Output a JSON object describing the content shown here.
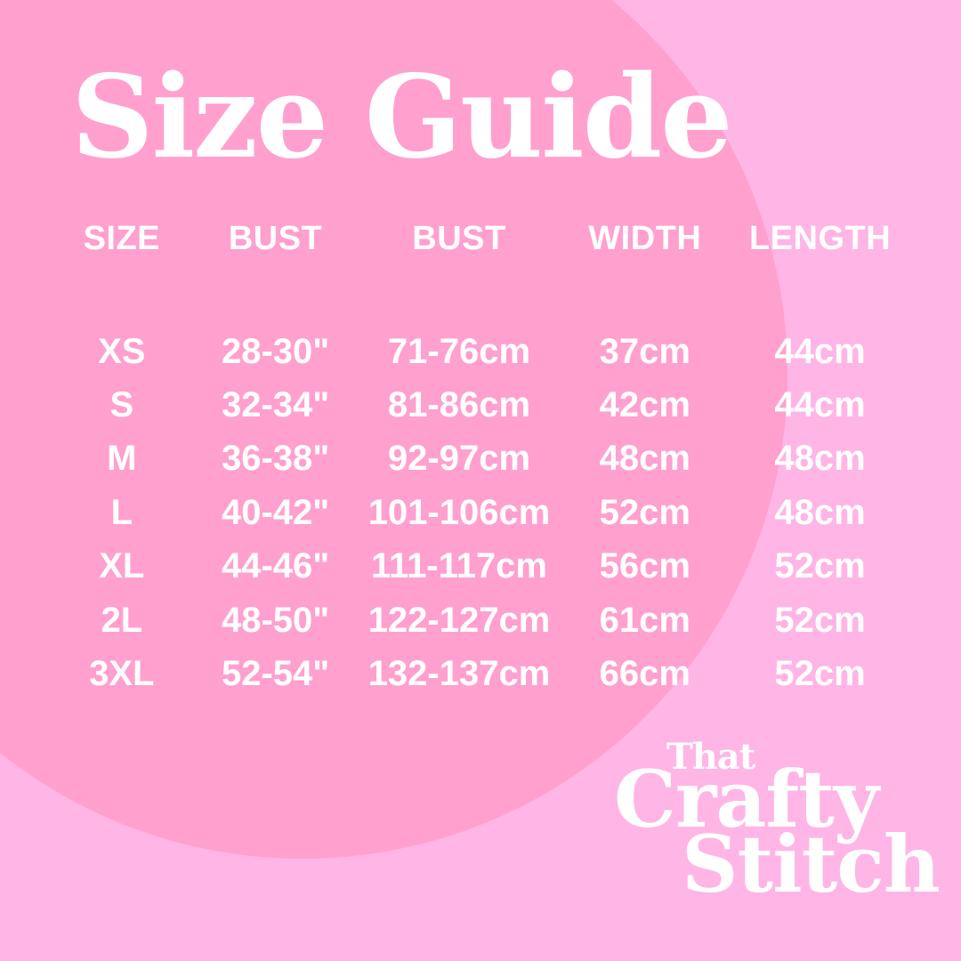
{
  "title": "Size Guide",
  "table": {
    "headers": [
      "SIZE",
      "BUST",
      "BUST",
      "WIDTH",
      "LENGTH"
    ],
    "rows": [
      [
        "XS",
        "28-30\"",
        "71-76cm",
        "37cm",
        "44cm"
      ],
      [
        "S",
        "32-34\"",
        "81-86cm",
        "42cm",
        "44cm"
      ],
      [
        "M",
        "36-38\"",
        "92-97cm",
        "48cm",
        "48cm"
      ],
      [
        "L",
        "40-42\"",
        "101-106cm",
        "52cm",
        "48cm"
      ],
      [
        "XL",
        "44-46\"",
        "111-117cm",
        "56cm",
        "52cm"
      ],
      [
        "2L",
        "48-50\"",
        "122-127cm",
        "61cm",
        "52cm"
      ],
      [
        "3XL",
        "52-54\"",
        "132-137cm",
        "66cm",
        "52cm"
      ]
    ]
  },
  "logo": {
    "line1": "That",
    "line2": "Crafty",
    "line3": "Stitch"
  },
  "colors": {
    "background": "#ffb5e6",
    "circle": "#ffa0cf",
    "text": "#ffffff"
  }
}
